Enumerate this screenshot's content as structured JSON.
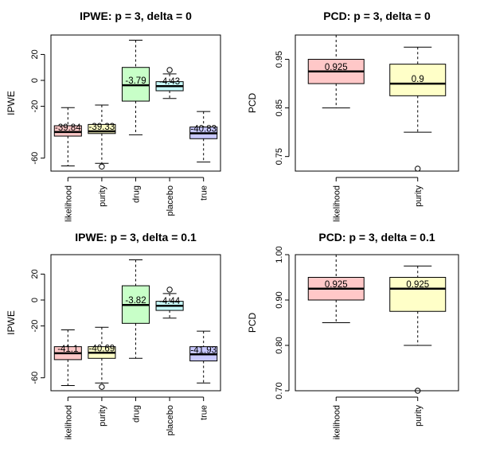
{
  "chart_data": [
    {
      "type": "box",
      "title": "IPWE: p = 3, delta = 0",
      "ylabel": "IPWE",
      "ylim": [
        -70,
        35
      ],
      "yticks": [
        20,
        0,
        -20,
        -60
      ],
      "categories": [
        "likelihood",
        "purity",
        "drug",
        "placebo",
        "true"
      ],
      "colors": [
        "#ffc8c8",
        "#ffffc8",
        "#c8ffc8",
        "#c8ffff",
        "#c8c8ff"
      ],
      "boxes": [
        {
          "min": -66,
          "q1": -43,
          "median": -39.84,
          "q3": -35,
          "max": -21,
          "outliers": [],
          "label": "-39.84"
        },
        {
          "min": -64,
          "q1": -41,
          "median": -39.33,
          "q3": -34,
          "max": -19,
          "outliers": [
            -66.5
          ],
          "label": "-39.33"
        },
        {
          "min": -42,
          "q1": -16,
          "median": -3.79,
          "q3": 10,
          "max": 31,
          "outliers": [],
          "label": "-3.79"
        },
        {
          "min": -14,
          "q1": -8,
          "median": -4.43,
          "q3": -1,
          "max": 5,
          "outliers": [
            8
          ],
          "label": "-4.43"
        },
        {
          "min": -63,
          "q1": -45,
          "median": -40.83,
          "q3": -36,
          "max": -24,
          "outliers": [],
          "label": "-40.83"
        }
      ]
    },
    {
      "type": "box",
      "title": "PCD: p = 3, delta = 0",
      "ylabel": "PCD",
      "ylim": [
        0.72,
        1.0
      ],
      "yticks": [
        0.95,
        0.85,
        0.75
      ],
      "categories": [
        "likelihood",
        "purity"
      ],
      "colors": [
        "#ffc8c8",
        "#ffffc8"
      ],
      "boxes": [
        {
          "min": 0.85,
          "q1": 0.9,
          "median": 0.925,
          "q3": 0.95,
          "max": 1.0,
          "outliers": [],
          "label": "0.925"
        },
        {
          "min": 0.8,
          "q1": 0.875,
          "median": 0.9,
          "q3": 0.94,
          "max": 0.975,
          "outliers": [
            0.725
          ],
          "label": "0.9"
        }
      ]
    },
    {
      "type": "box",
      "title": "IPWE: p = 3, delta = 0.1",
      "ylabel": "IPWE",
      "ylim": [
        -70,
        35
      ],
      "yticks": [
        20,
        0,
        -20,
        -60
      ],
      "categories": [
        "ikelihood",
        "purity",
        "drug",
        "placebo",
        "true"
      ],
      "colors": [
        "#ffc8c8",
        "#ffffc8",
        "#c8ffc8",
        "#c8ffff",
        "#c8c8ff"
      ],
      "boxes": [
        {
          "min": -66,
          "q1": -46,
          "median": -41.1,
          "q3": -36,
          "max": -23,
          "outliers": [],
          "label": "-41.1"
        },
        {
          "min": -64,
          "q1": -45,
          "median": -40.69,
          "q3": -36,
          "max": -21,
          "outliers": [
            -67
          ],
          "label": "-40.69"
        },
        {
          "min": -45,
          "q1": -18,
          "median": -3.82,
          "q3": 11,
          "max": 31,
          "outliers": [],
          "label": "-3.82"
        },
        {
          "min": -14,
          "q1": -8,
          "median": -4.44,
          "q3": -1,
          "max": 5,
          "outliers": [
            8
          ],
          "label": "-4.44"
        },
        {
          "min": -64,
          "q1": -47,
          "median": -41.93,
          "q3": -36,
          "max": -24,
          "outliers": [],
          "label": "-41.93"
        }
      ]
    },
    {
      "type": "box",
      "title": "PCD: p = 3, delta = 0.1",
      "ylabel": "PCD",
      "ylim": [
        0.7,
        1.0
      ],
      "yticks": [
        1.0,
        0.9,
        0.8,
        0.7
      ],
      "ytick_labels": [
        "1.00",
        "0.90",
        "0.80",
        "0.70"
      ],
      "categories": [
        "ikelihood",
        "purity"
      ],
      "colors": [
        "#ffc8c8",
        "#ffffc8"
      ],
      "boxes": [
        {
          "min": 0.85,
          "q1": 0.9,
          "median": 0.925,
          "q3": 0.95,
          "max": 1.0,
          "outliers": [],
          "label": "0.925"
        },
        {
          "min": 0.8,
          "q1": 0.875,
          "median": 0.925,
          "q3": 0.95,
          "max": 0.975,
          "outliers": [
            0.7
          ],
          "label": "0.925"
        }
      ]
    }
  ]
}
